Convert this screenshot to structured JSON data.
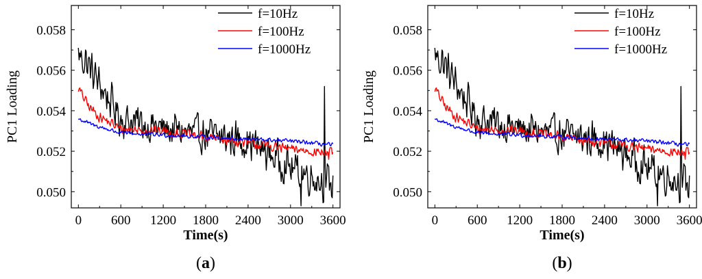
{
  "chart_data": [
    {
      "type": "line",
      "panel_label": "a",
      "xlabel": "Time(s)",
      "ylabel": "PC1 Loading",
      "xlim": [
        -100,
        3700
      ],
      "ylim": [
        0.0492,
        0.0592
      ],
      "xticks": [
        0,
        600,
        1200,
        1800,
        2400,
        3000,
        3600
      ],
      "xtick_labels": [
        "0",
        "600",
        "1200",
        "1800",
        "2400",
        "3000",
        "3600"
      ],
      "yticks": [
        0.05,
        0.052,
        0.054,
        0.056,
        0.058
      ],
      "ytick_labels": [
        "0.050",
        "0.052",
        "0.054",
        "0.056",
        "0.058"
      ],
      "legend_position": "top-right",
      "series": [
        {
          "name": "f=10Hz",
          "color": "#000000",
          "x_start": 0,
          "x_end": 3600,
          "n_points": 360,
          "trend": [
            [
              0,
              0.0568
            ],
            [
              150,
              0.0562
            ],
            [
              300,
              0.0553
            ],
            [
              600,
              0.0536
            ],
            [
              1200,
              0.0531
            ],
            [
              1800,
              0.0528
            ],
            [
              2400,
              0.0525
            ],
            [
              3000,
              0.0512
            ],
            [
              3600,
              0.0503
            ]
          ],
          "noise": 0.0011,
          "features": [
            [
              100,
              0.057
            ],
            [
              3480,
              0.0552
            ],
            [
              3150,
              0.0493
            ],
            [
              3590,
              0.0497
            ]
          ]
        },
        {
          "name": "f=100Hz",
          "color": "#ff0000",
          "x_start": 0,
          "x_end": 3600,
          "n_points": 360,
          "trend": [
            [
              0,
              0.0551
            ],
            [
              150,
              0.0542
            ],
            [
              300,
              0.0537
            ],
            [
              600,
              0.0531
            ],
            [
              1200,
              0.053
            ],
            [
              1800,
              0.0527
            ],
            [
              2400,
              0.0524
            ],
            [
              3000,
              0.0521
            ],
            [
              3600,
              0.0519
            ]
          ],
          "noise": 0.0003,
          "features": [
            [
              3540,
              0.0516
            ]
          ]
        },
        {
          "name": "f=1000Hz",
          "color": "#0000ff",
          "x_start": 0,
          "x_end": 3600,
          "n_points": 360,
          "trend": [
            [
              0,
              0.0536
            ],
            [
              200,
              0.0533
            ],
            [
              600,
              0.0529
            ],
            [
              1200,
              0.0528
            ],
            [
              1800,
              0.0527
            ],
            [
              2400,
              0.0526
            ],
            [
              3000,
              0.0525
            ],
            [
              3600,
              0.0523
            ]
          ],
          "noise": 0.00013,
          "features": []
        }
      ]
    },
    {
      "type": "line",
      "panel_label": "b",
      "xlabel": "Time(s)",
      "ylabel": "PC1 Loading",
      "xlim": [
        -100,
        3700
      ],
      "ylim": [
        0.0492,
        0.0592
      ],
      "xticks": [
        0,
        600,
        1200,
        1800,
        2400,
        3000,
        3600
      ],
      "xtick_labels": [
        "0",
        "600",
        "1200",
        "1800",
        "2400",
        "3000",
        "3600"
      ],
      "yticks": [
        0.05,
        0.052,
        0.054,
        0.056,
        0.058
      ],
      "ytick_labels": [
        "0.050",
        "0.052",
        "0.054",
        "0.056",
        "0.058"
      ],
      "legend_position": "top-right",
      "series": [
        {
          "name": "f=10Hz",
          "color": "#000000",
          "x_start": 0,
          "x_end": 3600,
          "n_points": 360,
          "trend": [
            [
              0,
              0.0568
            ],
            [
              150,
              0.0562
            ],
            [
              300,
              0.0553
            ],
            [
              600,
              0.0536
            ],
            [
              1200,
              0.0531
            ],
            [
              1800,
              0.0528
            ],
            [
              2400,
              0.0525
            ],
            [
              3000,
              0.0512
            ],
            [
              3600,
              0.0503
            ]
          ],
          "noise": 0.0011,
          "features": [
            [
              100,
              0.057
            ],
            [
              3480,
              0.0552
            ],
            [
              3150,
              0.0493
            ],
            [
              3590,
              0.0497
            ]
          ]
        },
        {
          "name": "f=100Hz",
          "color": "#ff0000",
          "x_start": 0,
          "x_end": 3600,
          "n_points": 360,
          "trend": [
            [
              0,
              0.0551
            ],
            [
              150,
              0.0542
            ],
            [
              300,
              0.0537
            ],
            [
              600,
              0.0531
            ],
            [
              1200,
              0.053
            ],
            [
              1800,
              0.0527
            ],
            [
              2400,
              0.0524
            ],
            [
              3000,
              0.0521
            ],
            [
              3600,
              0.0519
            ]
          ],
          "noise": 0.0003,
          "features": [
            [
              3540,
              0.0516
            ]
          ]
        },
        {
          "name": "f=1000Hz",
          "color": "#0000ff",
          "x_start": 0,
          "x_end": 3600,
          "n_points": 360,
          "trend": [
            [
              0,
              0.0536
            ],
            [
              200,
              0.0533
            ],
            [
              600,
              0.0529
            ],
            [
              1200,
              0.0528
            ],
            [
              1800,
              0.0527
            ],
            [
              2400,
              0.0526
            ],
            [
              3000,
              0.0525
            ],
            [
              3600,
              0.0523
            ]
          ],
          "noise": 0.00013,
          "features": []
        }
      ]
    }
  ]
}
